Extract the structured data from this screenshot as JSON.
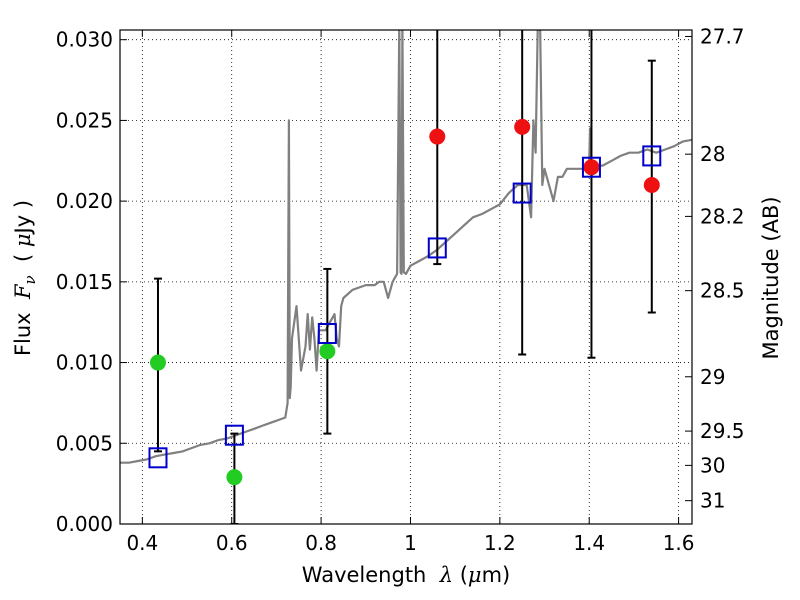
{
  "chart_data": {
    "type": "scatter",
    "xlabel_parts": {
      "prefix": "Wavelength  ",
      "symbol": "λ",
      "open": " (",
      "mu": "μ",
      "unit": "m)"
    },
    "ylabel_parts": {
      "prefix": "Flux  ",
      "symbol": "F",
      "sub": "ν",
      "open": "  ( ",
      "mu": "μ",
      "unit": "Jy )"
    },
    "y2label": "Magnitude (AB)",
    "xlim": [
      0.35,
      1.63
    ],
    "ylim": [
      0.0,
      0.0306
    ],
    "grid": true,
    "x_ticks": [
      {
        "value": 0.4,
        "label": "0.4"
      },
      {
        "value": 0.6,
        "label": "0.6"
      },
      {
        "value": 0.8,
        "label": "0.8"
      },
      {
        "value": 1.0,
        "label": "1"
      },
      {
        "value": 1.2,
        "label": "1.2"
      },
      {
        "value": 1.4,
        "label": "1.4"
      },
      {
        "value": 1.6,
        "label": "1.6"
      }
    ],
    "y_ticks": [
      {
        "value": 0.0,
        "label": "0.000"
      },
      {
        "value": 0.005,
        "label": "0.005"
      },
      {
        "value": 0.01,
        "label": "0.010"
      },
      {
        "value": 0.015,
        "label": "0.015"
      },
      {
        "value": 0.02,
        "label": "0.020"
      },
      {
        "value": 0.025,
        "label": "0.025"
      },
      {
        "value": 0.03,
        "label": "0.030"
      }
    ],
    "y2_ticks": [
      {
        "value": 27.7,
        "label": "27.7"
      },
      {
        "value": 28,
        "label": "28"
      },
      {
        "value": 28.2,
        "label": "28.2"
      },
      {
        "value": 28.5,
        "label": "28.5"
      },
      {
        "value": 29,
        "label": "29"
      },
      {
        "value": 29.5,
        "label": "29.5"
      },
      {
        "value": 30,
        "label": "30"
      },
      {
        "value": 31,
        "label": "31"
      }
    ],
    "series": [
      {
        "kind": "sed_model",
        "color": "#808080",
        "x": [
          0.35,
          0.37,
          0.39,
          0.41,
          0.43,
          0.45,
          0.47,
          0.49,
          0.51,
          0.53,
          0.55,
          0.57,
          0.59,
          0.61,
          0.63,
          0.65,
          0.67,
          0.69,
          0.71,
          0.72,
          0.725,
          0.728,
          0.73,
          0.732,
          0.735,
          0.745,
          0.755,
          0.765,
          0.77,
          0.775,
          0.78,
          0.785,
          0.79,
          0.795,
          0.8,
          0.81,
          0.82,
          0.83,
          0.835,
          0.84,
          0.845,
          0.85,
          0.87,
          0.9,
          0.92,
          0.93,
          0.94,
          0.95,
          0.96,
          0.97,
          0.975,
          0.978,
          0.98,
          0.982,
          0.985,
          0.99,
          1.0,
          1.02,
          1.04,
          1.06,
          1.08,
          1.1,
          1.12,
          1.14,
          1.16,
          1.18,
          1.2,
          1.22,
          1.24,
          1.26,
          1.27,
          1.275,
          1.28,
          1.285,
          1.29,
          1.295,
          1.3,
          1.31,
          1.32,
          1.33,
          1.34,
          1.35,
          1.37,
          1.39,
          1.4,
          1.402,
          1.405,
          1.41,
          1.43,
          1.45,
          1.47,
          1.49,
          1.51,
          1.53,
          1.55,
          1.57,
          1.59,
          1.61,
          1.63
        ],
        "y": [
          0.0038,
          0.0038,
          0.0039,
          0.004,
          0.0042,
          0.0043,
          0.0044,
          0.0045,
          0.0047,
          0.0049,
          0.005,
          0.0052,
          0.0053,
          0.0055,
          0.0057,
          0.0059,
          0.0061,
          0.0063,
          0.0065,
          0.0066,
          0.0075,
          0.025,
          0.0078,
          0.0085,
          0.0115,
          0.0135,
          0.0095,
          0.011,
          0.013,
          0.0108,
          0.0128,
          0.0115,
          0.0095,
          0.012,
          0.012,
          0.012,
          0.0125,
          0.013,
          0.0115,
          0.011,
          0.0135,
          0.014,
          0.0145,
          0.0148,
          0.0148,
          0.015,
          0.015,
          0.014,
          0.015,
          0.0155,
          0.031,
          0.0156,
          0.0155,
          0.031,
          0.0156,
          0.0155,
          0.016,
          0.0163,
          0.0166,
          0.017,
          0.0175,
          0.018,
          0.0185,
          0.019,
          0.0192,
          0.0195,
          0.0198,
          0.0205,
          0.021,
          0.021,
          0.019,
          0.025,
          0.023,
          0.031,
          0.031,
          0.021,
          0.022,
          0.021,
          0.02,
          0.0215,
          0.0215,
          0.022,
          0.022,
          0.022,
          0.0225,
          0.0245,
          0.0215,
          0.0222,
          0.0222,
          0.0225,
          0.0228,
          0.023,
          0.023,
          0.0232,
          0.023,
          0.0232,
          0.0234,
          0.0237,
          0.0238
        ]
      },
      {
        "kind": "model_photometry",
        "marker": "open-square",
        "color": "#0000cc",
        "x": [
          0.435,
          0.606,
          0.814,
          1.06,
          1.25,
          1.405,
          1.54
        ],
        "y": [
          0.0041,
          0.0055,
          0.0118,
          0.0171,
          0.0205,
          0.0221,
          0.0228
        ]
      },
      {
        "kind": "photometry_optical",
        "marker": "filled-circle",
        "color": "#22cc22",
        "x": [
          0.435,
          0.606,
          0.814
        ],
        "y": [
          0.01,
          0.0029,
          0.0107
        ]
      },
      {
        "kind": "photometry_nir",
        "marker": "filled-circle",
        "color": "#ee1111",
        "x": [
          1.06,
          1.25,
          1.405,
          1.54
        ],
        "y": [
          0.024,
          0.0246,
          0.0221,
          0.021
        ]
      }
    ],
    "error_bars": {
      "color": "#000000",
      "items": [
        {
          "x": 0.435,
          "low": 0.0045,
          "high": 0.0152
        },
        {
          "x": 0.606,
          "low": 0.0,
          "high": 0.0056
        },
        {
          "x": 0.814,
          "low": 0.0056,
          "high": 0.0158
        },
        {
          "x": 1.06,
          "low": 0.0161,
          "high": 0.032
        },
        {
          "x": 1.25,
          "low": 0.0105,
          "high": 0.032
        },
        {
          "x": 1.405,
          "low": 0.0103,
          "high": 0.032
        },
        {
          "x": 1.54,
          "low": 0.0131,
          "high": 0.0287
        }
      ]
    }
  }
}
